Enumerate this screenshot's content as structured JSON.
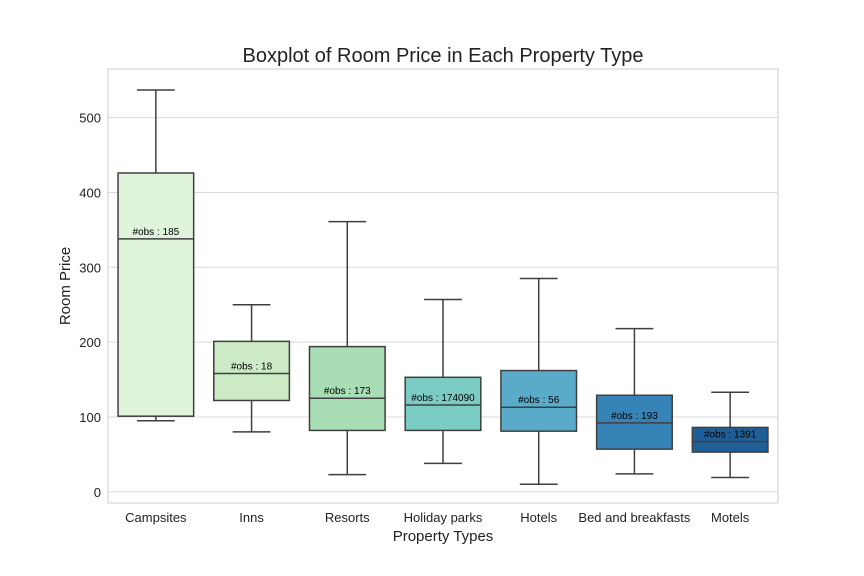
{
  "chart_data": {
    "type": "boxplot",
    "title": "Boxplot of Room Price in Each Property Type",
    "xlabel": "Property Types",
    "ylabel": "Room Price",
    "ylim": [
      -15,
      565
    ],
    "yticks": [
      0,
      100,
      200,
      300,
      400,
      500
    ],
    "grid": true,
    "categories": [
      "Campsites",
      "Inns",
      "Resorts",
      "Holiday parks",
      "Hotels",
      "Bed and breakfasts",
      "Motels"
    ],
    "boxes": [
      {
        "category": "Campsites",
        "whisker_low": 95,
        "q1": 101,
        "median": 338,
        "q3": 426,
        "whisker_high": 537,
        "n_label": "#obs : 185",
        "color": "#e0f3db"
      },
      {
        "category": "Inns",
        "whisker_low": 80,
        "q1": 122,
        "median": 158,
        "q3": 201,
        "whisker_high": 250,
        "n_label": "#obs : 18",
        "color": "#ccebc5"
      },
      {
        "category": "Resorts",
        "whisker_low": 23,
        "q1": 82,
        "median": 125,
        "q3": 194,
        "whisker_high": 361,
        "n_label": "#obs : 173",
        "color": "#a8ddb5"
      },
      {
        "category": "Holiday parks",
        "whisker_low": 38,
        "q1": 82,
        "median": 116,
        "q3": 153,
        "whisker_high": 257,
        "n_label": "#obs : 174090",
        "color": "#7bccc4"
      },
      {
        "category": "Hotels",
        "whisker_low": 10,
        "q1": 81,
        "median": 113,
        "q3": 162,
        "whisker_high": 285,
        "n_label": "#obs : 56",
        "color": "#5aabc9"
      },
      {
        "category": "Bed and breakfasts",
        "whisker_low": 24,
        "q1": 57,
        "median": 92,
        "q3": 129,
        "whisker_high": 218,
        "n_label": "#obs : 193",
        "color": "#3583b7"
      },
      {
        "category": "Motels",
        "whisker_low": 19,
        "q1": 53,
        "median": 67,
        "q3": 86,
        "whisker_high": 133,
        "n_label": "#obs : 1391",
        "color": "#1e5f98"
      }
    ]
  }
}
